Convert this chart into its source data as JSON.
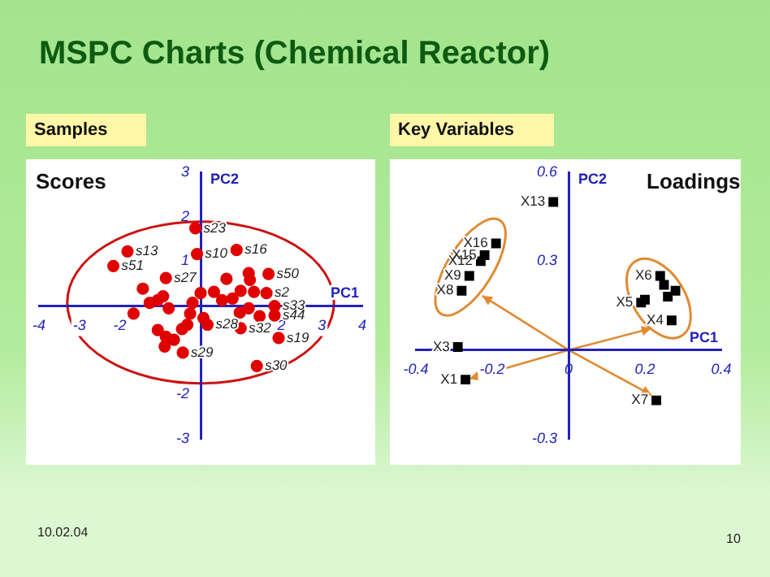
{
  "chart_data": [
    {
      "type": "scatter",
      "title": "Scores",
      "subtitle": "Samples",
      "xlabel": "PC1",
      "ylabel": "PC2",
      "marker": "circle",
      "grid": false,
      "color": "#e00000",
      "x": [
        -0.13,
        -0.09,
        0.89,
        -1.81,
        -2.16,
        -0.86,
        1.68,
        1.63,
        1.93,
        1.39,
        1.83,
        1.83,
        0.99,
        0.17,
        -0.46,
        -0.44,
        -0.33,
        -1.43,
        -1.66,
        -1.26,
        -1.06,
        -0.93,
        -0.79,
        -1.06,
        -0.86,
        -0.89,
        -0.66,
        -0.26,
        -0.2,
        0,
        0.33,
        0.64,
        0.53,
        0.79,
        0.99,
        1.19,
        1.22,
        1.32,
        0.97,
        1.19,
        1.46,
        0.07
      ],
      "values": [
        1.74,
        1.16,
        1.25,
        1.22,
        0.89,
        0.62,
        0.71,
        0.28,
        -0.73,
        -1.36,
        -0.01,
        -0.22,
        -0.51,
        -0.43,
        -0.53,
        -1.06,
        -0.43,
        0.38,
        -0.18,
        0.06,
        0.12,
        0.21,
        -0.06,
        -0.55,
        -0.7,
        -0.92,
        -0.77,
        -0.18,
        0.06,
        0.28,
        0.31,
        0.6,
        0.12,
        0.16,
        0.33,
        0.73,
        0.58,
        0.31,
        -0.16,
        -0.06,
        -0.24,
        -0.28
      ],
      "xlim": [
        -4,
        4
      ],
      "ylim": [
        -3,
        3
      ],
      "xticks": [
        -4,
        -3,
        -2,
        2,
        3,
        4
      ],
      "yticks": [
        -3,
        -2,
        1,
        2,
        3
      ],
      "annotations": [
        "MSPC Charts (Chemical Reactor)",
        "10.02.04",
        "10",
        {
          "text": "s23",
          "x": -0.13,
          "y": 1.74
        },
        {
          "text": "s10",
          "x": -0.09,
          "y": 1.16
        },
        {
          "text": "s16",
          "x": 0.89,
          "y": 1.25
        },
        {
          "text": "s13",
          "x": -1.81,
          "y": 1.22
        },
        {
          "text": "s51",
          "x": -2.16,
          "y": 0.89
        },
        {
          "text": "s27",
          "x": -0.86,
          "y": 0.62
        },
        {
          "text": "s50",
          "x": 1.68,
          "y": 0.71
        },
        {
          "text": "s2",
          "x": 1.63,
          "y": 0.28
        },
        {
          "text": "s19",
          "x": 1.93,
          "y": -0.73
        },
        {
          "text": "s30",
          "x": 1.39,
          "y": -1.36
        },
        {
          "text": "s33",
          "x": 1.83,
          "y": -0.01
        },
        {
          "text": "s44",
          "x": 1.83,
          "y": -0.22
        },
        {
          "text": "s32",
          "x": 0.99,
          "y": -0.51
        },
        {
          "text": "s28",
          "x": 0.17,
          "y": -0.43
        },
        {
          "text": "s29",
          "x": -0.44,
          "y": -1.06
        }
      ]
    },
    {
      "type": "scatter",
      "title": "Loadings",
      "subtitle": "Key Variables",
      "xlabel": "PC1",
      "ylabel": "PC2",
      "marker": "square",
      "grid": false,
      "color": "#000000",
      "x": [
        -0.04,
        -0.19,
        -0.22,
        -0.23,
        -0.26,
        -0.28,
        -0.29,
        -0.27,
        0.23,
        0.27,
        0.19,
        0.24,
        0.25,
        0.26,
        0.28,
        0.2
      ],
      "values": [
        0.5,
        0.36,
        0.32,
        0.3,
        0.25,
        0.2,
        0.01,
        -0.1,
        -0.17,
        0.1,
        0.16,
        0.25,
        0.22,
        0.18,
        0.2,
        0.17
      ],
      "xlim": [
        -0.4,
        0.4
      ],
      "ylim": [
        -0.3,
        0.6
      ],
      "xticks": [
        -0.4,
        -0.2,
        0,
        0.2,
        0.4
      ],
      "yticks": [
        -0.3,
        0.3,
        0.6
      ],
      "annotations": [
        {
          "text": "X13",
          "x": -0.04,
          "y": 0.5
        },
        {
          "text": "X16",
          "x": -0.19,
          "y": 0.36
        },
        {
          "text": "X15",
          "x": -0.22,
          "y": 0.32
        },
        {
          "text": "X12",
          "x": -0.23,
          "y": 0.3
        },
        {
          "text": "X9",
          "x": -0.26,
          "y": 0.25
        },
        {
          "text": "X8",
          "x": -0.28,
          "y": 0.2
        },
        {
          "text": "X3",
          "x": -0.29,
          "y": 0.01
        },
        {
          "text": "X1",
          "x": -0.27,
          "y": -0.1
        },
        {
          "text": "X7",
          "x": 0.23,
          "y": -0.17
        },
        {
          "text": "X4",
          "x": 0.27,
          "y": 0.1
        },
        {
          "text": "X5",
          "x": 0.19,
          "y": 0.16
        },
        {
          "text": "X6",
          "x": 0.24,
          "y": 0.25
        }
      ]
    }
  ]
}
